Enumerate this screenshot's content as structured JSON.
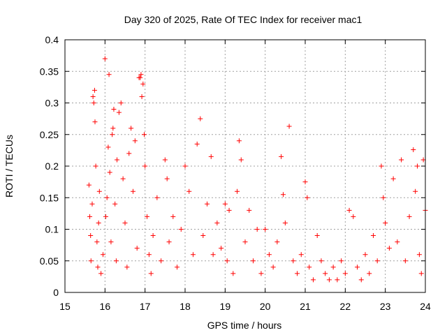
{
  "chart_data": {
    "type": "scatter",
    "title": "Day 320 of 2025, Rate Of TEC Index for receiver mac1",
    "xlabel": "GPS time / hours",
    "ylabel": "ROTI / TECUs",
    "xlim": [
      15,
      24
    ],
    "ylim": [
      0,
      0.4
    ],
    "x_ticks": [
      "15",
      "16",
      "17",
      "18",
      "19",
      "20",
      "21",
      "22",
      "23",
      "24"
    ],
    "y_ticks": [
      "0",
      "0.05",
      "0.1",
      "0.15",
      "0.2",
      "0.25",
      "0.3",
      "0.35",
      "0.4"
    ],
    "grid": true,
    "marker": "+",
    "color": "#ff0000",
    "series": [
      {
        "points": [
          [
            15.6,
            0.17
          ],
          [
            15.62,
            0.12
          ],
          [
            15.64,
            0.09
          ],
          [
            15.65,
            0.05
          ],
          [
            15.68,
            0.14
          ],
          [
            15.7,
            0.31
          ],
          [
            15.72,
            0.3
          ],
          [
            15.74,
            0.32
          ],
          [
            15.75,
            0.27
          ],
          [
            15.77,
            0.2
          ],
          [
            15.8,
            0.08
          ],
          [
            15.82,
            0.04
          ],
          [
            15.84,
            0.11
          ],
          [
            15.86,
            0.16
          ],
          [
            15.9,
            0.03
          ],
          [
            15.95,
            0.06
          ],
          [
            16.0,
            0.37
          ],
          [
            16.02,
            0.12
          ],
          [
            16.05,
            0.15
          ],
          [
            16.08,
            0.23
          ],
          [
            16.1,
            0.345
          ],
          [
            16.12,
            0.19
          ],
          [
            16.15,
            0.08
          ],
          [
            16.18,
            0.25
          ],
          [
            16.2,
            0.26
          ],
          [
            16.22,
            0.29
          ],
          [
            16.25,
            0.14
          ],
          [
            16.28,
            0.05
          ],
          [
            16.3,
            0.21
          ],
          [
            16.35,
            0.285
          ],
          [
            16.4,
            0.3
          ],
          [
            16.45,
            0.18
          ],
          [
            16.5,
            0.11
          ],
          [
            16.55,
            0.04
          ],
          [
            16.6,
            0.22
          ],
          [
            16.65,
            0.26
          ],
          [
            16.7,
            0.16
          ],
          [
            16.75,
            0.24
          ],
          [
            16.8,
            0.07
          ],
          [
            16.85,
            0.34
          ],
          [
            16.88,
            0.34
          ],
          [
            16.9,
            0.345
          ],
          [
            16.92,
            0.31
          ],
          [
            16.95,
            0.33
          ],
          [
            16.98,
            0.25
          ],
          [
            17.0,
            0.2
          ],
          [
            17.05,
            0.12
          ],
          [
            17.1,
            0.06
          ],
          [
            17.15,
            0.03
          ],
          [
            17.2,
            0.09
          ],
          [
            17.3,
            0.15
          ],
          [
            17.4,
            0.05
          ],
          [
            17.5,
            0.21
          ],
          [
            17.55,
            0.18
          ],
          [
            17.6,
            0.08
          ],
          [
            17.7,
            0.12
          ],
          [
            17.8,
            0.04
          ],
          [
            17.9,
            0.1
          ],
          [
            18.0,
            0.2
          ],
          [
            18.1,
            0.16
          ],
          [
            18.2,
            0.06
          ],
          [
            18.3,
            0.235
          ],
          [
            18.38,
            0.275
          ],
          [
            18.45,
            0.09
          ],
          [
            18.55,
            0.14
          ],
          [
            18.65,
            0.215
          ],
          [
            18.7,
            0.06
          ],
          [
            18.8,
            0.11
          ],
          [
            18.9,
            0.07
          ],
          [
            19.0,
            0.14
          ],
          [
            19.05,
            0.05
          ],
          [
            19.1,
            0.13
          ],
          [
            19.2,
            0.03
          ],
          [
            19.3,
            0.16
          ],
          [
            19.35,
            0.24
          ],
          [
            19.4,
            0.21
          ],
          [
            19.5,
            0.08
          ],
          [
            19.6,
            0.13
          ],
          [
            19.7,
            0.05
          ],
          [
            19.8,
            0.1
          ],
          [
            19.9,
            0.03
          ],
          [
            20.0,
            0.1
          ],
          [
            20.1,
            0.06
          ],
          [
            20.2,
            0.04
          ],
          [
            20.3,
            0.08
          ],
          [
            20.4,
            0.215
          ],
          [
            20.45,
            0.155
          ],
          [
            20.5,
            0.11
          ],
          [
            20.6,
            0.263
          ],
          [
            20.7,
            0.05
          ],
          [
            20.8,
            0.03
          ],
          [
            20.9,
            0.06
          ],
          [
            21.0,
            0.175
          ],
          [
            21.05,
            0.15
          ],
          [
            21.1,
            0.04
          ],
          [
            21.2,
            0.02
          ],
          [
            21.3,
            0.09
          ],
          [
            21.4,
            0.05
          ],
          [
            21.5,
            0.03
          ],
          [
            21.6,
            0.02
          ],
          [
            21.7,
            0.04
          ],
          [
            21.8,
            0.02
          ],
          [
            21.9,
            0.05
          ],
          [
            22.0,
            0.03
          ],
          [
            22.1,
            0.13
          ],
          [
            22.2,
            0.12
          ],
          [
            22.3,
            0.04
          ],
          [
            22.4,
            0.02
          ],
          [
            22.5,
            0.06
          ],
          [
            22.6,
            0.03
          ],
          [
            22.7,
            0.09
          ],
          [
            22.8,
            0.05
          ],
          [
            22.9,
            0.2
          ],
          [
            22.95,
            0.15
          ],
          [
            23.0,
            0.11
          ],
          [
            23.1,
            0.07
          ],
          [
            23.2,
            0.18
          ],
          [
            23.3,
            0.08
          ],
          [
            23.4,
            0.21
          ],
          [
            23.5,
            0.05
          ],
          [
            23.6,
            0.12
          ],
          [
            23.7,
            0.226
          ],
          [
            23.75,
            0.16
          ],
          [
            23.8,
            0.2
          ],
          [
            23.85,
            0.06
          ],
          [
            23.9,
            0.03
          ],
          [
            23.95,
            0.21
          ],
          [
            24.0,
            0.13
          ]
        ]
      }
    ]
  }
}
